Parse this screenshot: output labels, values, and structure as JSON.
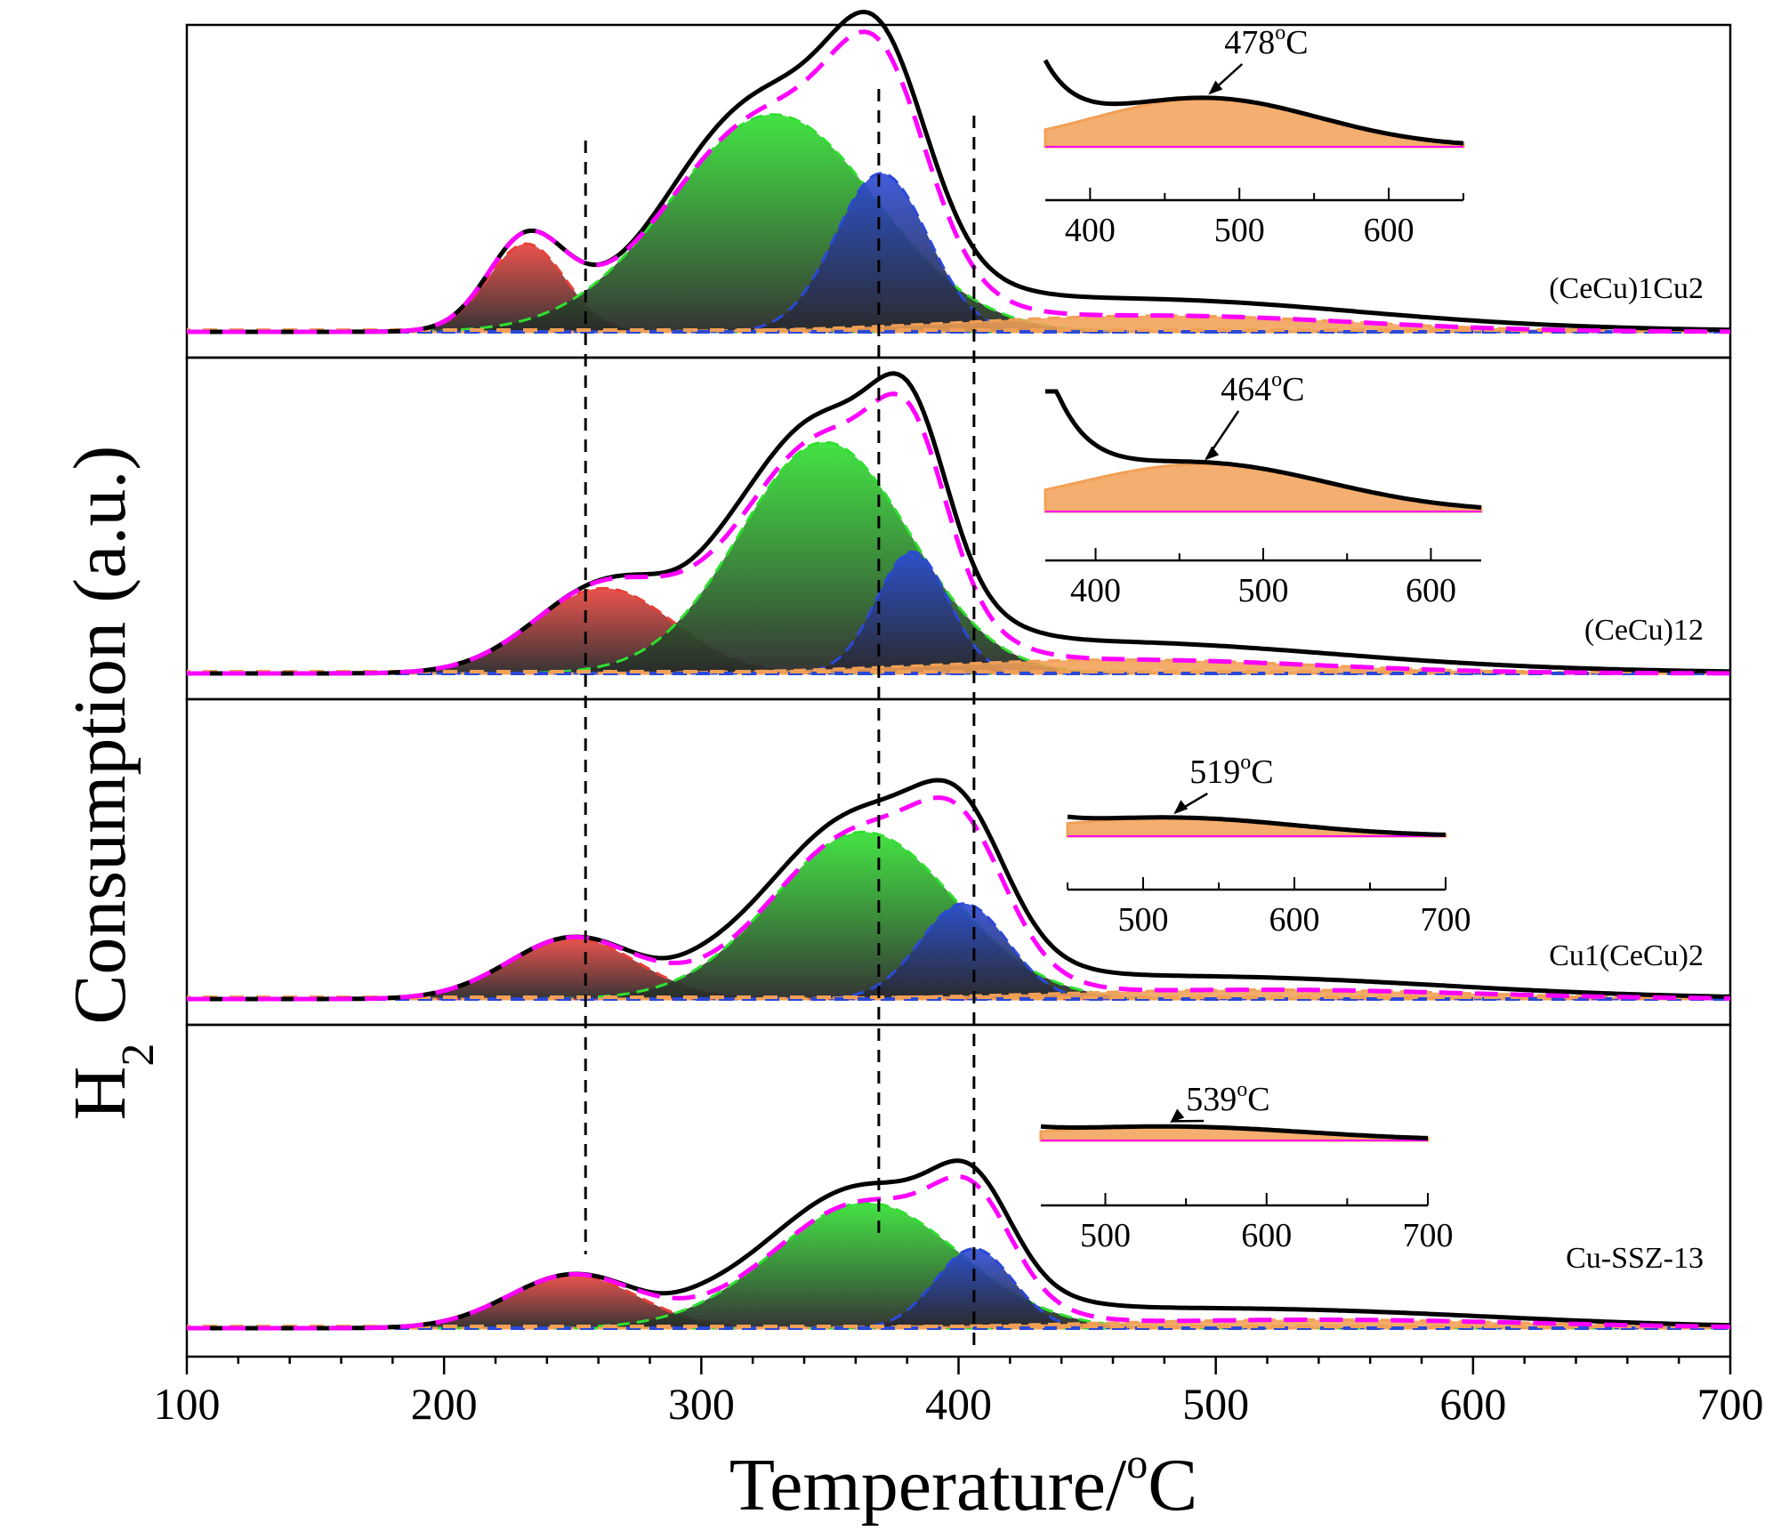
{
  "chart_data": {
    "type": "line",
    "title": "",
    "xlabel": "Temperature/°C",
    "xlabel_parts": {
      "main": "Temperature/",
      "sup": "o",
      "unit": "C"
    },
    "ylabel": "H2 Consumption (a.u.)",
    "ylabel_parts": {
      "h": "H",
      "sub": "2",
      "rest": " Consumption (a.u.)"
    },
    "xlim": [
      100,
      700
    ],
    "xticks": [
      "100",
      "200",
      "300",
      "400",
      "500",
      "600",
      "700"
    ],
    "reference_lines_x": [
      255,
      369,
      406
    ],
    "colors": {
      "measured": "#000000",
      "fit_sum": "#ff00ff",
      "peak_alpha": "#e8403a",
      "peak_beta": "#2fe02f",
      "peak_gamma": "#2b49d8",
      "peak_delta": "#f2a056",
      "baseline_dash": "#2b49d8"
    },
    "panels": [
      {
        "label": "(CeCu)1Cu2",
        "peaks": [
          {
            "id": "alpha",
            "center": 232,
            "width": 15,
            "height": 0.3
          },
          {
            "id": "beta",
            "center": 328,
            "width": 40,
            "height": 0.74
          },
          {
            "id": "gamma",
            "center": 370,
            "width": 18,
            "height": 0.54
          },
          {
            "id": "delta",
            "center": 478,
            "width": 75,
            "height": 0.055
          }
        ],
        "inset": {
          "xlim": [
            370,
            650
          ],
          "xticks": [
            "400",
            "500",
            "600"
          ],
          "peak": "478°C",
          "peak_parts": {
            "num": "478",
            "sup": "o",
            "unit": "C"
          },
          "peak_x": 478,
          "tail_center": 380
        }
      },
      {
        "label": "(CeCu)12",
        "peaks": [
          {
            "id": "alpha",
            "center": 262,
            "width": 27,
            "height": 0.28
          },
          {
            "id": "beta",
            "center": 348,
            "width": 33,
            "height": 0.76
          },
          {
            "id": "gamma",
            "center": 382,
            "width": 14,
            "height": 0.4
          },
          {
            "id": "delta",
            "center": 464,
            "width": 75,
            "height": 0.045
          }
        ],
        "inset": {
          "xlim": [
            370,
            630
          ],
          "xticks": [
            "400",
            "500",
            "600"
          ],
          "peak": "464°C",
          "peak_parts": {
            "num": "464",
            "sup": "o",
            "unit": "C"
          },
          "peak_x": 464,
          "tail_center": 390
        }
      },
      {
        "label": "Cu1(CeCu)2",
        "peaks": [
          {
            "id": "alpha",
            "center": 250,
            "width": 25,
            "height": 0.23
          },
          {
            "id": "beta",
            "center": 363,
            "width": 35,
            "height": 0.63
          },
          {
            "id": "gamma",
            "center": 402,
            "width": 17,
            "height": 0.36
          },
          {
            "id": "delta",
            "center": 519,
            "width": 80,
            "height": 0.035
          }
        ],
        "inset": {
          "xlim": [
            450,
            700
          ],
          "xticks": [
            "500",
            "600",
            "700"
          ],
          "peak": "519°C",
          "peak_parts": {
            "num": "519",
            "sup": "o",
            "unit": "C"
          },
          "peak_x": 519,
          "tail_center": 420
        }
      },
      {
        "label": "Cu-SSZ-13",
        "peaks": [
          {
            "id": "alpha",
            "center": 250,
            "width": 25,
            "height": 0.22
          },
          {
            "id": "beta",
            "center": 364,
            "width": 36,
            "height": 0.52
          },
          {
            "id": "gamma",
            "center": 406,
            "width": 15,
            "height": 0.33
          },
          {
            "id": "delta",
            "center": 539,
            "width": 85,
            "height": 0.035
          }
        ],
        "inset": {
          "xlim": [
            460,
            700
          ],
          "xticks": [
            "500",
            "600",
            "700"
          ],
          "peak": "539°C",
          "peak_parts": {
            "num": "539",
            "sup": "o",
            "unit": "C"
          },
          "peak_x": 539,
          "tail_center": 430
        }
      }
    ]
  }
}
